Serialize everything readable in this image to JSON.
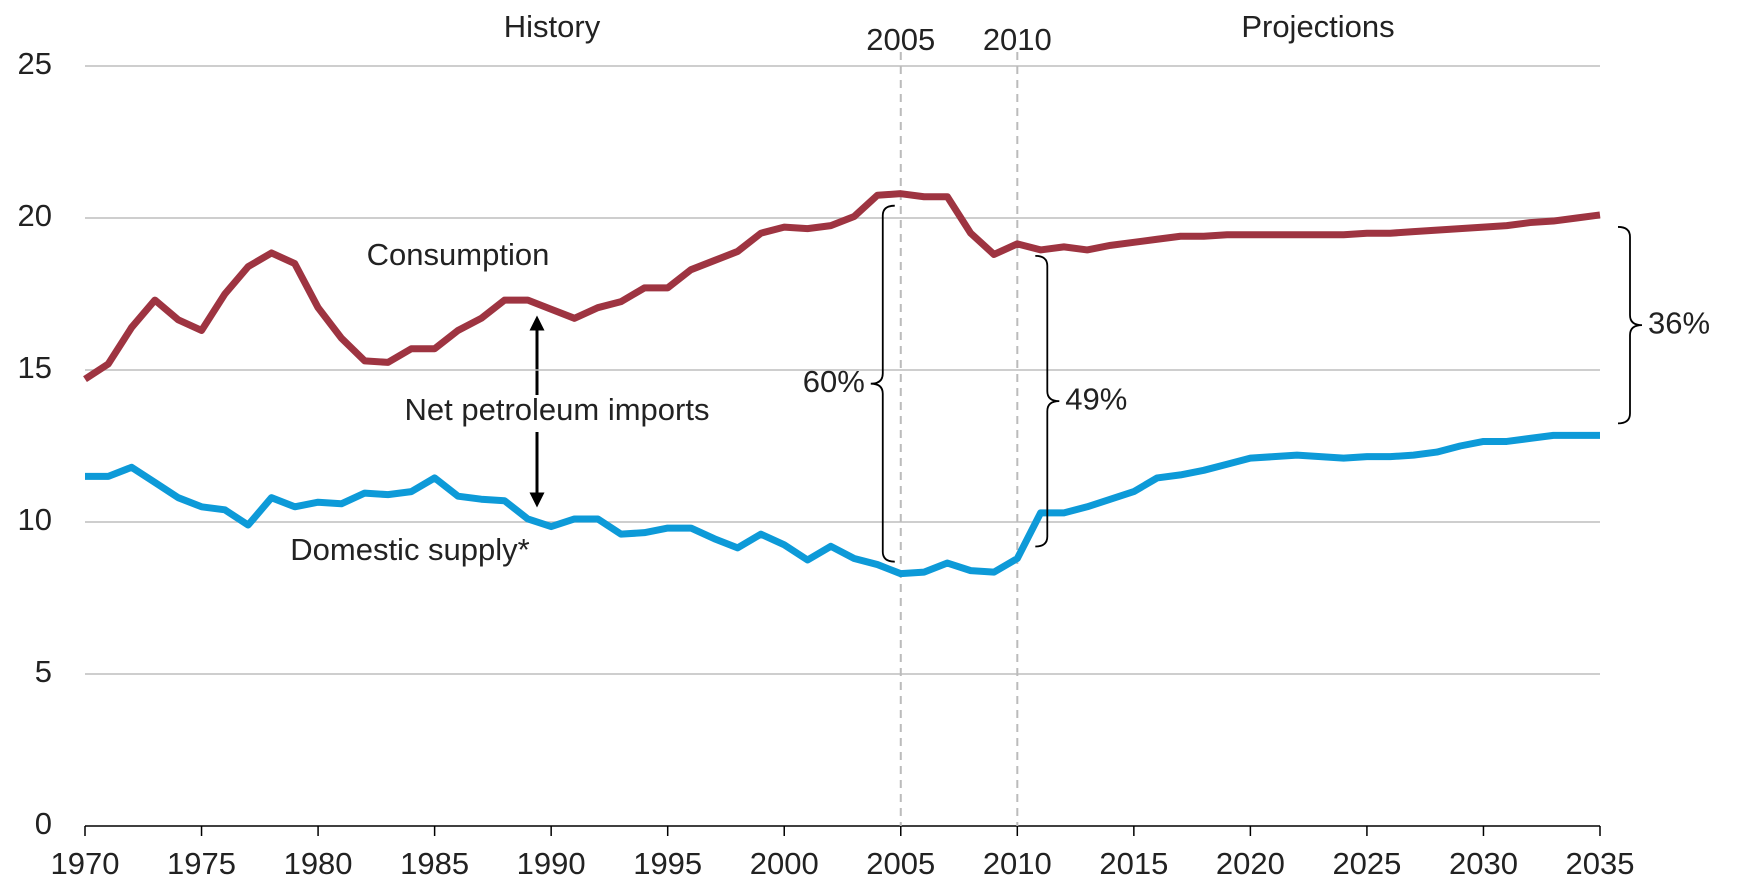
{
  "chart_data": {
    "type": "line",
    "annotations": {
      "history": "History",
      "projections": "Projections",
      "imports": "Net petroleum imports"
    },
    "x": [
      1970,
      1971,
      1972,
      1973,
      1974,
      1975,
      1976,
      1977,
      1978,
      1979,
      1980,
      1981,
      1982,
      1983,
      1984,
      1985,
      1986,
      1987,
      1988,
      1989,
      1990,
      1991,
      1992,
      1993,
      1994,
      1995,
      1996,
      1997,
      1998,
      1999,
      2000,
      2001,
      2002,
      2003,
      2004,
      2005,
      2006,
      2007,
      2008,
      2009,
      2010,
      2011,
      2012,
      2013,
      2014,
      2015,
      2016,
      2017,
      2018,
      2019,
      2020,
      2021,
      2022,
      2023,
      2024,
      2025,
      2026,
      2027,
      2028,
      2029,
      2030,
      2031,
      2032,
      2033,
      2034,
      2035
    ],
    "series": [
      {
        "name": "Consumption",
        "color": "#9e3441",
        "values": [
          14.7,
          15.2,
          16.4,
          17.3,
          16.65,
          16.3,
          17.5,
          18.4,
          18.85,
          18.5,
          17.05,
          16.05,
          15.3,
          15.25,
          15.7,
          15.7,
          16.3,
          16.7,
          17.3,
          17.3,
          17.0,
          16.7,
          17.05,
          17.25,
          17.7,
          17.7,
          18.3,
          18.6,
          18.9,
          19.5,
          19.7,
          19.65,
          19.75,
          20.05,
          20.75,
          20.8,
          20.7,
          20.7,
          19.5,
          18.8,
          19.15,
          18.95,
          19.05,
          18.95,
          19.1,
          19.2,
          19.3,
          19.4,
          19.4,
          19.45,
          19.45,
          19.45,
          19.45,
          19.45,
          19.45,
          19.5,
          19.5,
          19.55,
          19.6,
          19.65,
          19.7,
          19.75,
          19.85,
          19.9,
          20.0,
          20.1
        ]
      },
      {
        "name": "Domestic supply*",
        "color": "#0d9ad8",
        "values": [
          11.5,
          11.5,
          11.8,
          11.3,
          10.8,
          10.5,
          10.4,
          9.9,
          10.8,
          10.5,
          10.65,
          10.6,
          10.95,
          10.9,
          11.0,
          11.45,
          10.85,
          10.75,
          10.7,
          10.1,
          9.85,
          10.1,
          10.1,
          9.6,
          9.65,
          9.8,
          9.8,
          9.45,
          9.15,
          9.6,
          9.25,
          8.75,
          9.2,
          8.8,
          8.6,
          8.3,
          8.35,
          8.65,
          8.4,
          8.35,
          8.8,
          10.3,
          10.3,
          10.5,
          10.75,
          11.0,
          11.45,
          11.55,
          11.7,
          11.9,
          12.1,
          12.15,
          12.2,
          12.15,
          12.1,
          12.15,
          12.15,
          12.2,
          12.3,
          12.5,
          12.65,
          12.65,
          12.75,
          12.85,
          12.85,
          12.85
        ]
      }
    ],
    "vlines": [
      2005,
      2010
    ],
    "shares": {
      "x": [
        2005,
        2010,
        2035
      ],
      "values": [
        60,
        49,
        36
      ],
      "value_labels": [
        "60%",
        "49%",
        "36%"
      ]
    },
    "xlim": [
      1970,
      2035
    ],
    "xticks": [
      1970,
      1975,
      1980,
      1985,
      1990,
      1995,
      2000,
      2005,
      2010,
      2015,
      2020,
      2025,
      2030,
      2035
    ],
    "ylim": [
      0,
      25
    ],
    "yticks": [
      0,
      5,
      10,
      15,
      20,
      25
    ],
    "grid": true
  }
}
